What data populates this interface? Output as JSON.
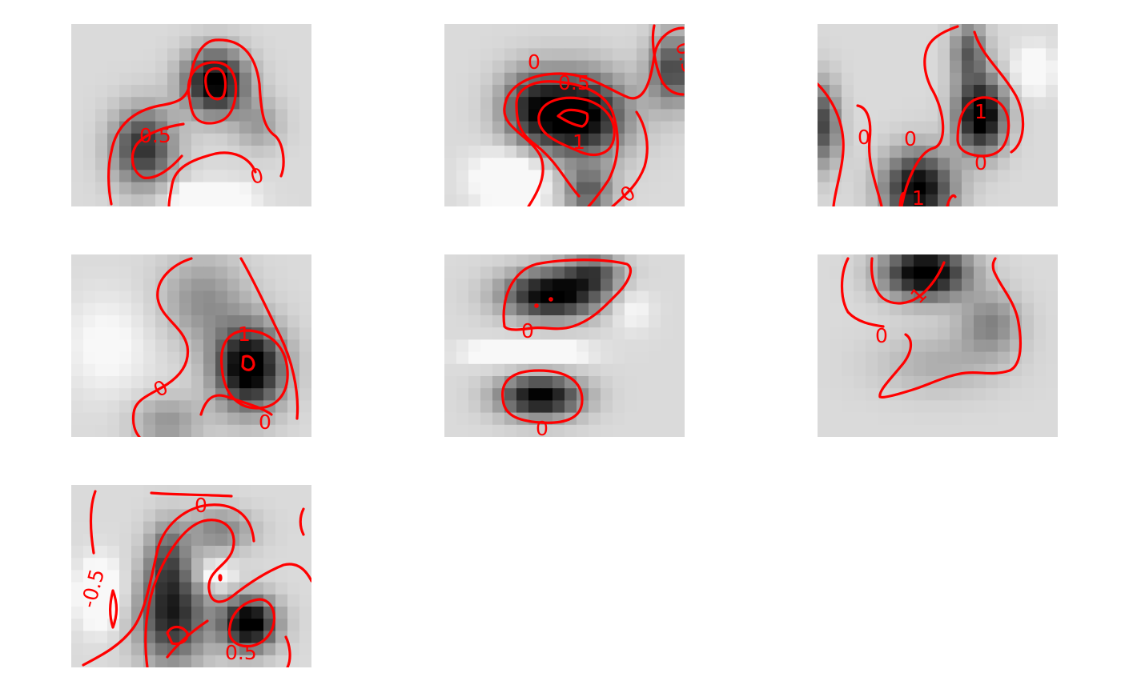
{
  "chart_data": [
    {
      "type": "heatmap",
      "title": "",
      "colormap": "gray_r",
      "grid": false,
      "axes_visible": false,
      "contour_color": "#ff0000",
      "contour_labels": [
        "0.5",
        "0"
      ],
      "blobs": [
        {
          "x": 0.6,
          "y": 0.32,
          "sx": 0.09,
          "sy": 0.12,
          "a": 0.95
        },
        {
          "x": 0.3,
          "y": 0.68,
          "sx": 0.09,
          "sy": 0.15,
          "a": 0.7
        },
        {
          "x": 0.78,
          "y": 0.55,
          "sx": 0.07,
          "sy": 0.1,
          "a": 0.25
        },
        {
          "x": 0.58,
          "y": 0.95,
          "sx": 0.1,
          "sy": 0.05,
          "a": -0.5
        }
      ]
    },
    {
      "type": "heatmap",
      "title": "",
      "colormap": "gray_r",
      "grid": false,
      "axes_visible": false,
      "contour_color": "#ff0000",
      "contour_labels": [
        "0",
        "0.5",
        "1",
        "0.5",
        "0"
      ],
      "blobs": [
        {
          "x": 0.55,
          "y": 0.5,
          "sx": 0.14,
          "sy": 0.16,
          "a": 1.0
        },
        {
          "x": 0.95,
          "y": 0.25,
          "sx": 0.07,
          "sy": 0.14,
          "a": 0.6
        },
        {
          "x": 0.35,
          "y": 0.45,
          "sx": 0.09,
          "sy": 0.14,
          "a": 0.45
        },
        {
          "x": 0.6,
          "y": 0.92,
          "sx": 0.07,
          "sy": 0.09,
          "a": 0.5
        },
        {
          "x": 0.28,
          "y": 0.85,
          "sx": 0.1,
          "sy": 0.1,
          "a": -0.4
        }
      ]
    },
    {
      "type": "heatmap",
      "title": "",
      "colormap": "gray_r",
      "grid": false,
      "axes_visible": false,
      "contour_color": "#ff0000",
      "contour_labels": [
        "1",
        "0",
        "0",
        "0",
        "1"
      ],
      "blobs": [
        {
          "x": 0.68,
          "y": 0.5,
          "sx": 0.07,
          "sy": 0.14,
          "a": 1.0
        },
        {
          "x": 0.42,
          "y": 0.9,
          "sx": 0.1,
          "sy": 0.14,
          "a": 0.9
        },
        {
          "x": 0.63,
          "y": 0.15,
          "sx": 0.05,
          "sy": 0.12,
          "a": 0.5
        },
        {
          "x": 0.02,
          "y": 0.55,
          "sx": 0.05,
          "sy": 0.16,
          "a": 0.6
        },
        {
          "x": 0.9,
          "y": 0.25,
          "sx": 0.05,
          "sy": 0.08,
          "a": -0.3
        }
      ]
    },
    {
      "type": "heatmap",
      "title": "",
      "colormap": "gray_r",
      "grid": false,
      "axes_visible": false,
      "contour_color": "#ff0000",
      "contour_labels": [
        "1",
        "0",
        "0"
      ],
      "blobs": [
        {
          "x": 0.74,
          "y": 0.62,
          "sx": 0.1,
          "sy": 0.16,
          "a": 1.0
        },
        {
          "x": 0.55,
          "y": 0.25,
          "sx": 0.12,
          "sy": 0.17,
          "a": 0.3
        },
        {
          "x": 0.4,
          "y": 0.92,
          "sx": 0.1,
          "sy": 0.1,
          "a": 0.28
        },
        {
          "x": 0.15,
          "y": 0.5,
          "sx": 0.12,
          "sy": 0.18,
          "a": -0.15
        }
      ]
    },
    {
      "type": "heatmap",
      "title": "",
      "colormap": "gray_r",
      "grid": false,
      "axes_visible": false,
      "contour_color": "#ff0000",
      "contour_labels": [
        "0",
        "0"
      ],
      "blobs": [
        {
          "x": 0.45,
          "y": 0.22,
          "sx": 0.14,
          "sy": 0.09,
          "a": 0.95
        },
        {
          "x": 0.62,
          "y": 0.1,
          "sx": 0.08,
          "sy": 0.07,
          "a": 0.5
        },
        {
          "x": 0.4,
          "y": 0.78,
          "sx": 0.12,
          "sy": 0.08,
          "a": 0.9
        },
        {
          "x": 0.34,
          "y": 0.54,
          "sx": 0.14,
          "sy": 0.04,
          "a": -0.55
        },
        {
          "x": 0.78,
          "y": 0.3,
          "sx": 0.06,
          "sy": 0.08,
          "a": -0.15
        }
      ]
    },
    {
      "type": "heatmap",
      "title": "",
      "colormap": "gray_r",
      "grid": false,
      "axes_visible": false,
      "contour_color": "#ff0000",
      "contour_labels": [
        "1",
        "0"
      ],
      "blobs": [
        {
          "x": 0.45,
          "y": 0.1,
          "sx": 0.12,
          "sy": 0.1,
          "a": 1.0
        },
        {
          "x": 0.72,
          "y": 0.38,
          "sx": 0.09,
          "sy": 0.12,
          "a": 0.35
        },
        {
          "x": 0.5,
          "y": 0.6,
          "sx": 0.18,
          "sy": 0.12,
          "a": 0.18
        }
      ]
    },
    {
      "type": "heatmap",
      "title": "",
      "colormap": "gray_r",
      "grid": false,
      "axes_visible": false,
      "contour_color": "#ff0000",
      "contour_labels": [
        "0",
        "-0.5",
        "0.5"
      ],
      "blobs": [
        {
          "x": 0.74,
          "y": 0.76,
          "sx": 0.08,
          "sy": 0.1,
          "a": 1.0
        },
        {
          "x": 0.42,
          "y": 0.72,
          "sx": 0.1,
          "sy": 0.18,
          "a": 0.75
        },
        {
          "x": 0.4,
          "y": 0.4,
          "sx": 0.06,
          "sy": 0.14,
          "a": 0.45
        },
        {
          "x": 0.62,
          "y": 0.25,
          "sx": 0.1,
          "sy": 0.08,
          "a": 0.35
        },
        {
          "x": 0.12,
          "y": 0.6,
          "sx": 0.06,
          "sy": 0.12,
          "a": -0.4
        },
        {
          "x": 0.6,
          "y": 0.5,
          "sx": 0.05,
          "sy": 0.05,
          "a": -0.3
        }
      ]
    }
  ]
}
